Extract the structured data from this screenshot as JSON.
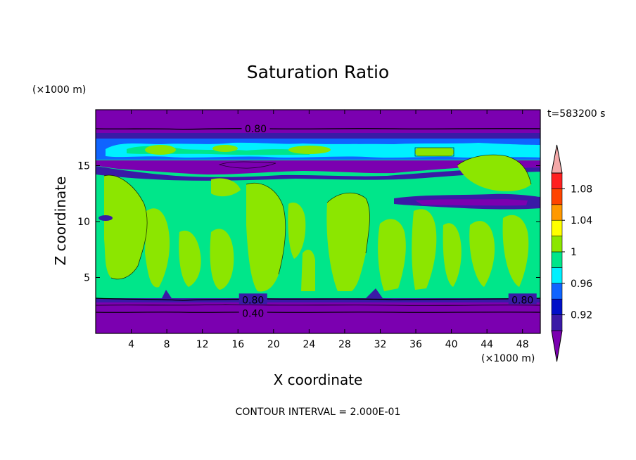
{
  "chart_data": {
    "type": "heatmap",
    "title": "Saturation Ratio",
    "xlabel": "X coordinate",
    "ylabel": "Z coordinate",
    "x_unit": "(×1000 m)",
    "y_unit": "(×1000 m)",
    "time_label": "t=583200 s",
    "footer": "CONTOUR INTERVAL = 2.000E-01",
    "xlim": [
      0,
      50
    ],
    "ylim": [
      0,
      20
    ],
    "x_ticks": [
      4,
      8,
      12,
      16,
      20,
      24,
      28,
      32,
      36,
      40,
      44,
      48
    ],
    "y_ticks": [
      5,
      10,
      15
    ],
    "colorbar": {
      "levels": [
        0.9,
        0.92,
        0.94,
        0.96,
        0.98,
        1.0,
        1.02,
        1.04,
        1.06,
        1.08,
        1.1
      ],
      "tick_labels": [
        "0.92",
        "0.96",
        "1",
        "1.04",
        "1.08"
      ],
      "tick_values": [
        0.92,
        0.96,
        1.0,
        1.04,
        1.08
      ],
      "colors": [
        "#7b00b0",
        "#3a1aa6",
        "#0010c8",
        "#0f64ff",
        "#00f0ff",
        "#00e68a",
        "#8ce600",
        "#ffff00",
        "#ff9900",
        "#ff4400",
        "#ff2020",
        "#f4a8a8"
      ]
    },
    "bands": [
      {
        "z0": 0.0,
        "z1": 3.2,
        "value": "<0.90"
      },
      {
        "z0": 3.2,
        "z1": 3.5,
        "value": "0.98-1.00"
      },
      {
        "z0": 3.5,
        "z1": 14.5,
        "value": "0.98-1.02 mixed"
      },
      {
        "z0": 14.3,
        "z1": 15.3,
        "value": "<0.90"
      },
      {
        "z0": 15.3,
        "z1": 17.5,
        "value": "0.92-1.00 mixed"
      },
      {
        "z0": 18.0,
        "z1": 20.0,
        "value": "<0.90"
      }
    ],
    "contour_lines": [
      {
        "level": 0.4,
        "z": 1.8,
        "label": "0.40"
      },
      {
        "level": 0.8,
        "z": 3.0,
        "label": "0.80"
      },
      {
        "level": 0.8,
        "z": 18.3,
        "label": "0.80"
      }
    ]
  }
}
